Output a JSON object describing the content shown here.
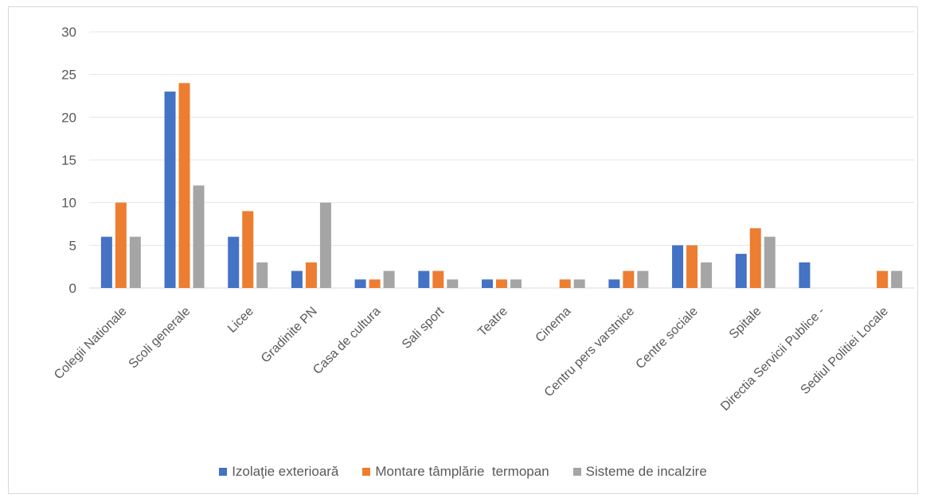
{
  "chart_data": {
    "type": "bar",
    "title": "",
    "xlabel": "",
    "ylabel": "",
    "ylim": [
      0,
      30
    ],
    "yticks": [
      0,
      5,
      10,
      15,
      20,
      25,
      30
    ],
    "grid": true,
    "legend_position": "bottom",
    "categories": [
      "Colegii Nationale",
      "Scoli generale",
      "Licee",
      "Gradinite PN",
      "Casa de cultura",
      "Sali sport",
      "Teatre",
      "Cinema",
      "Centru pers varstnice",
      "Centre sociale",
      "Spitale",
      "Directia Servicii Publice -",
      "Sediul Politiei Locale"
    ],
    "series": [
      {
        "name": "Izolaţie exterioară",
        "color": "#4472c4",
        "values": [
          6,
          23,
          6,
          2,
          1,
          2,
          1,
          0,
          1,
          5,
          4,
          3,
          0
        ]
      },
      {
        "name": "Montare tâmplărie  termopan",
        "color": "#ed7d31",
        "values": [
          10,
          24,
          9,
          3,
          1,
          2,
          1,
          1,
          2,
          5,
          7,
          0,
          2
        ]
      },
      {
        "name": "Sisteme de incalzire",
        "color": "#a5a5a5",
        "values": [
          6,
          12,
          3,
          10,
          2,
          1,
          1,
          1,
          2,
          3,
          6,
          0,
          2
        ]
      }
    ]
  }
}
